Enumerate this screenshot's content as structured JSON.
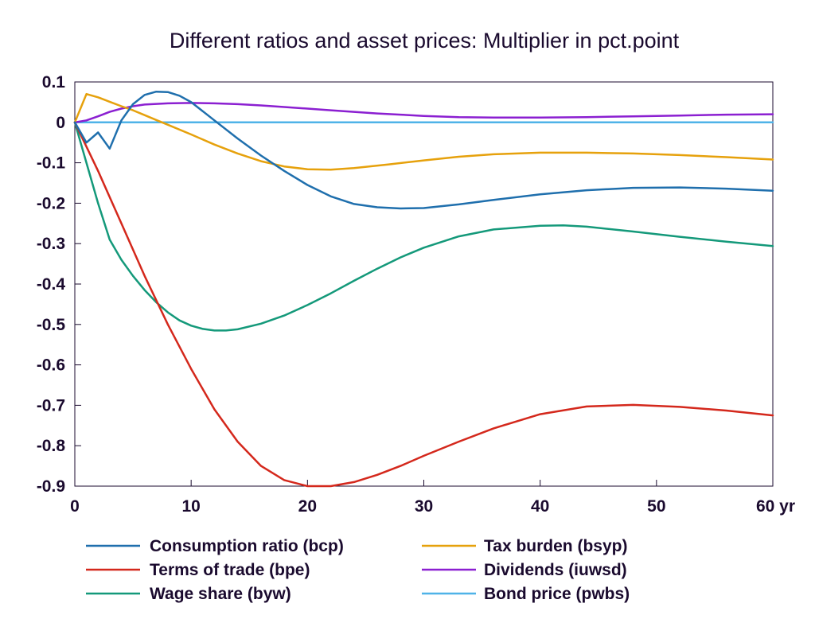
{
  "chart_data": {
    "type": "line",
    "title": "Different ratios and asset prices: Multiplier in pct.point",
    "xlabel": "",
    "ylabel": "",
    "xlim": [
      0,
      60
    ],
    "ylim": [
      -0.9,
      0.1
    ],
    "x_ticks": [
      0,
      10,
      20,
      30,
      40,
      50,
      60
    ],
    "x_tick_labels": [
      "0",
      "10",
      "20",
      "30",
      "40",
      "50",
      "60 yr"
    ],
    "y_ticks": [
      0.1,
      0,
      -0.1,
      -0.2,
      -0.3,
      -0.4,
      -0.5,
      -0.6,
      -0.7,
      -0.8,
      -0.9
    ],
    "y_tick_labels": [
      "0.1",
      "0",
      "-0.1",
      "-0.2",
      "-0.3",
      "-0.4",
      "-0.5",
      "-0.6",
      "-0.7",
      "-0.8",
      "-0.9"
    ],
    "grid": false,
    "legend_position": "bottom",
    "series": [
      {
        "name": "Consumption ratio (bcp)",
        "color": "#1f6fad",
        "x": [
          0,
          1,
          2,
          3,
          4,
          5,
          6,
          7,
          8,
          9,
          10,
          12,
          14,
          16,
          18,
          20,
          22,
          24,
          26,
          28,
          30,
          33,
          36,
          40,
          44,
          48,
          52,
          56,
          60
        ],
        "y": [
          0,
          -0.05,
          -0.025,
          -0.065,
          0.005,
          0.045,
          0.068,
          0.076,
          0.075,
          0.066,
          0.05,
          0.005,
          -0.04,
          -0.082,
          -0.12,
          -0.155,
          -0.183,
          -0.202,
          -0.21,
          -0.213,
          -0.212,
          -0.203,
          -0.192,
          -0.178,
          -0.168,
          -0.162,
          -0.161,
          -0.164,
          -0.169
        ]
      },
      {
        "name": "Terms of trade (bpe)",
        "color": "#d4281c",
        "x": [
          0,
          2,
          4,
          6,
          8,
          10,
          12,
          14,
          16,
          18,
          20,
          22,
          24,
          26,
          28,
          30,
          33,
          36,
          40,
          44,
          48,
          52,
          56,
          60
        ],
        "y": [
          0,
          -0.12,
          -0.25,
          -0.38,
          -0.5,
          -0.61,
          -0.71,
          -0.79,
          -0.85,
          -0.885,
          -0.9,
          -0.9,
          -0.89,
          -0.872,
          -0.85,
          -0.825,
          -0.79,
          -0.757,
          -0.722,
          -0.703,
          -0.699,
          -0.704,
          -0.713,
          -0.725
        ]
      },
      {
        "name": "Wage share (byw)",
        "color": "#14997a",
        "x": [
          0,
          1,
          2,
          3,
          4,
          5,
          6,
          7,
          8,
          9,
          10,
          11,
          12,
          13,
          14,
          16,
          18,
          20,
          22,
          24,
          26,
          28,
          30,
          33,
          36,
          40,
          42,
          44,
          48,
          52,
          56,
          60
        ],
        "y": [
          0,
          -0.1,
          -0.2,
          -0.29,
          -0.34,
          -0.38,
          -0.415,
          -0.445,
          -0.47,
          -0.49,
          -0.503,
          -0.511,
          -0.515,
          -0.515,
          -0.512,
          -0.498,
          -0.478,
          -0.452,
          -0.423,
          -0.392,
          -0.362,
          -0.334,
          -0.31,
          -0.282,
          -0.265,
          -0.256,
          -0.255,
          -0.258,
          -0.27,
          -0.283,
          -0.295,
          -0.306
        ]
      },
      {
        "name": "Tax burden (bsyp)",
        "color": "#e6a10c",
        "x": [
          0,
          1,
          2,
          3,
          4,
          5,
          6,
          7,
          8,
          10,
          12,
          14,
          16,
          18,
          20,
          22,
          24,
          27,
          30,
          33,
          36,
          40,
          44,
          48,
          52,
          56,
          60
        ],
        "y": [
          0,
          0.07,
          0.062,
          0.051,
          0.04,
          0.03,
          0.018,
          0.006,
          -0.006,
          -0.03,
          -0.055,
          -0.077,
          -0.096,
          -0.109,
          -0.116,
          -0.117,
          -0.113,
          -0.104,
          -0.094,
          -0.085,
          -0.079,
          -0.075,
          -0.075,
          -0.077,
          -0.081,
          -0.086,
          -0.092
        ]
      },
      {
        "name": "Dividends (iuwsd)",
        "color": "#8b1fd1",
        "x": [
          0,
          1,
          2,
          3,
          4,
          5,
          6,
          8,
          10,
          12,
          14,
          16,
          18,
          20,
          22,
          24,
          26,
          28,
          30,
          33,
          36,
          40,
          44,
          48,
          52,
          56,
          60
        ],
        "y": [
          0,
          0.005,
          0.015,
          0.026,
          0.034,
          0.04,
          0.044,
          0.047,
          0.048,
          0.047,
          0.045,
          0.042,
          0.038,
          0.034,
          0.03,
          0.026,
          0.022,
          0.019,
          0.016,
          0.013,
          0.012,
          0.012,
          0.013,
          0.015,
          0.017,
          0.019,
          0.02
        ]
      },
      {
        "name": "Bond price (pwbs)",
        "color": "#4fb3e8",
        "x": [
          0,
          60
        ],
        "y": [
          0,
          0
        ]
      }
    ]
  }
}
